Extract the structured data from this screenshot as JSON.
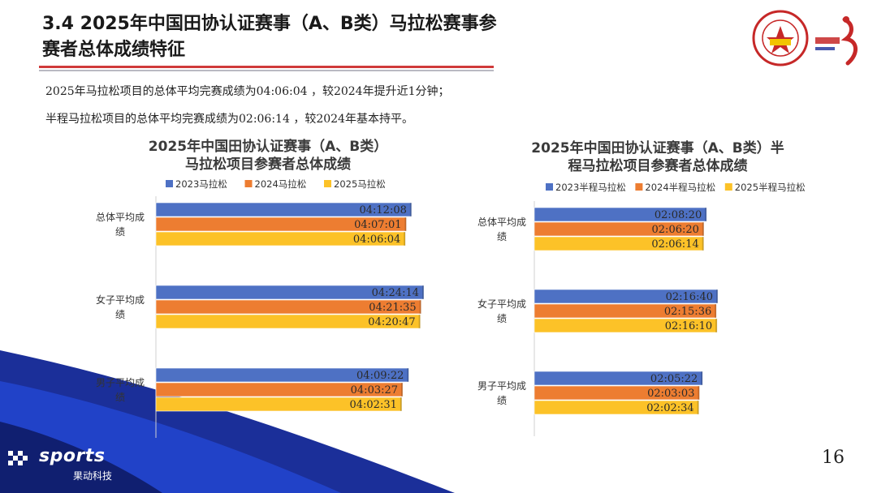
{
  "title_line1": "3.4 2025年中国田协认证赛事（A、B类）马拉松赛事参",
  "title_line2": "赛者总体成绩特征",
  "summary_1": "2025年马拉松项目的总体平均完赛成绩为04:06:04 ，较2024年提升近1分钟；",
  "summary_2": "半程马拉松项目的总体平均完赛成绩为02:06:14 ，较2024年基本持平。",
  "logo": {
    "brand": "sports",
    "sub": "果动科技",
    "assoc_icon": "chinese-athletics-association-emblem",
    "run_icon": "china-running-logo"
  },
  "page_number": "16",
  "colors": {
    "series_2023": "#4e71c4",
    "series_2024": "#ed7d31",
    "series_2025": "#fcc228",
    "title_red": "#d03a3a"
  },
  "chart_data": [
    {
      "type": "bar",
      "orientation": "horizontal",
      "title_line1": "2025年中国田协认证赛事（A、B类）",
      "title_line2": "马拉松项目参赛者总体成绩",
      "categories": [
        "总体平均成绩",
        "女子平均成绩",
        "男子平均成绩"
      ],
      "unit": "h:mm:ss",
      "series": [
        {
          "name": "2023马拉松",
          "values": [
            "04:12:08",
            "04:24:14",
            "04:09:22"
          ]
        },
        {
          "name": "2024马拉松",
          "values": [
            "04:07:01",
            "04:21:35",
            "04:03:27"
          ]
        },
        {
          "name": "2025马拉松",
          "values": [
            "04:06:04",
            "04:20:47",
            "04:02:31"
          ]
        }
      ],
      "legend_position": "top",
      "grid": false
    },
    {
      "type": "bar",
      "orientation": "horizontal",
      "title_line1": "2025年中国田协认证赛事（A、B类）半",
      "title_line2": "程马拉松项目参赛者总体成绩",
      "categories": [
        "总体平均成绩",
        "女子平均成绩",
        "男子平均成绩"
      ],
      "unit": "h:mm:ss",
      "series": [
        {
          "name": "2023半程马拉松",
          "values": [
            "02:08:20",
            "02:16:40",
            "02:05:22"
          ]
        },
        {
          "name": "2024半程马拉松",
          "values": [
            "02:06:20",
            "02:15:36",
            "02:03:03"
          ]
        },
        {
          "name": "2025半程马拉松",
          "values": [
            "02:06:14",
            "02:16:10",
            "02:02:34"
          ]
        }
      ],
      "legend_position": "top",
      "grid": false
    }
  ]
}
